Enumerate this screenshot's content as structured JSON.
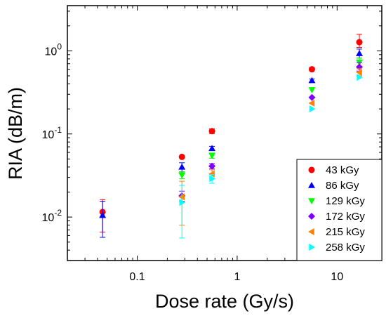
{
  "chart_data": {
    "type": "scatter",
    "title": "",
    "xlabel": "Dose rate (Gy/s)",
    "ylabel": "RIA (dB/m)",
    "x_scale": "log",
    "y_scale": "log",
    "xlim": [
      0.02,
      28
    ],
    "ylim": [
      0.003,
      3.5
    ],
    "x_major_ticks": [
      {
        "value": 0.1,
        "label": "0.1"
      },
      {
        "value": 1,
        "label": "1"
      },
      {
        "value": 10,
        "label": "10"
      }
    ],
    "y_major_ticks": [
      {
        "value": 0.01,
        "base": "10",
        "exp": "-2"
      },
      {
        "value": 0.1,
        "base": "10",
        "exp": "-1"
      },
      {
        "value": 1,
        "base": "10",
        "exp": "0"
      }
    ],
    "grid": false,
    "legend_position": "bottom-right",
    "series": [
      {
        "name": "43 kGy",
        "color": "#ff0000",
        "marker": "circle",
        "points": [
          {
            "x": 0.045,
            "y": 0.0115,
            "err_lo": 0.0066,
            "err_hi": 0.0162
          },
          {
            "x": 0.28,
            "y": 0.053
          },
          {
            "x": 0.56,
            "y": 0.108,
            "err_lo": 0.101,
            "err_hi": 0.115
          },
          {
            "x": 5.6,
            "y": 0.6,
            "err_lo": 0.58,
            "err_hi": 0.63
          },
          {
            "x": 16.7,
            "y": 1.27,
            "err_lo": 1.1,
            "err_hi": 1.58
          }
        ]
      },
      {
        "name": "86 kGy",
        "color": "#0000ff",
        "marker": "triangle-up",
        "points": [
          {
            "x": 0.045,
            "y": 0.0105,
            "err_lo": 0.0057,
            "err_hi": 0.0155
          },
          {
            "x": 0.28,
            "y": 0.04,
            "err_lo": 0.035,
            "err_hi": 0.045
          },
          {
            "x": 0.56,
            "y": 0.067,
            "err_lo": 0.063,
            "err_hi": 0.071
          },
          {
            "x": 5.6,
            "y": 0.44,
            "err_lo": 0.42,
            "err_hi": 0.46
          },
          {
            "x": 16.7,
            "y": 0.93,
            "err_lo": 0.82,
            "err_hi": 1.05
          }
        ]
      },
      {
        "name": "129 kGy",
        "color": "#00ff00",
        "marker": "triangle-down",
        "points": [
          {
            "x": 0.28,
            "y": 0.032,
            "err_lo": 0.029,
            "err_hi": 0.035
          },
          {
            "x": 0.56,
            "y": 0.055,
            "err_lo": 0.051,
            "err_hi": 0.059
          },
          {
            "x": 5.6,
            "y": 0.34
          },
          {
            "x": 16.7,
            "y": 0.73,
            "err_lo": 0.65,
            "err_hi": 0.82
          }
        ]
      },
      {
        "name": "172 kGy",
        "color": "#8000ff",
        "marker": "diamond",
        "points": [
          {
            "x": 0.28,
            "y": 0.018,
            "err_lo": 0.0155,
            "err_hi": 0.0205
          },
          {
            "x": 0.56,
            "y": 0.041,
            "err_lo": 0.038,
            "err_hi": 0.044
          },
          {
            "x": 5.6,
            "y": 0.275
          },
          {
            "x": 16.7,
            "y": 0.64,
            "err_lo": 0.57,
            "err_hi": 0.72
          }
        ]
      },
      {
        "name": "215 kGy",
        "color": "#ff8000",
        "marker": "triangle-left",
        "points": [
          {
            "x": 0.28,
            "y": 0.0175,
            "err_lo": 0.008,
            "err_hi": 0.027
          },
          {
            "x": 0.56,
            "y": 0.033,
            "err_lo": 0.029,
            "err_hi": 0.037
          },
          {
            "x": 5.6,
            "y": 0.235
          },
          {
            "x": 16.7,
            "y": 0.55,
            "err_lo": 0.5,
            "err_hi": 0.61
          }
        ]
      },
      {
        "name": "258 kGy",
        "color": "#00ffff",
        "marker": "triangle-right",
        "points": [
          {
            "x": 0.28,
            "y": 0.015,
            "err_lo": 0.0056,
            "err_hi": 0.024
          },
          {
            "x": 0.56,
            "y": 0.029,
            "err_lo": 0.0255,
            "err_hi": 0.0325
          },
          {
            "x": 5.6,
            "y": 0.2
          },
          {
            "x": 16.7,
            "y": 0.48
          }
        ]
      }
    ]
  }
}
